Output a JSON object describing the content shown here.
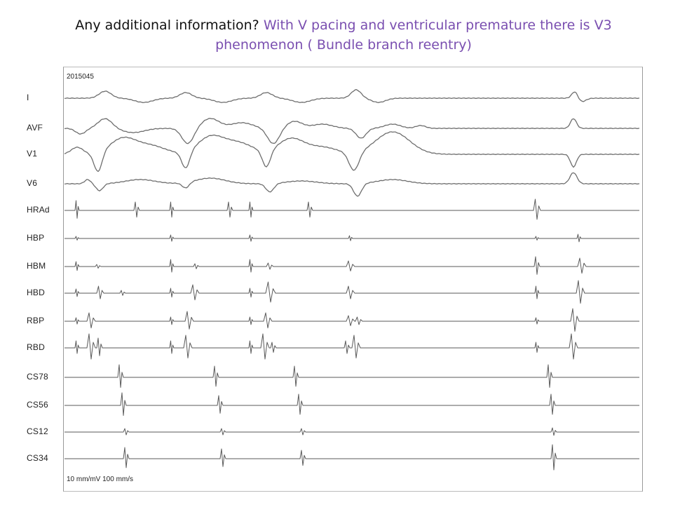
{
  "title": {
    "prefix": "Any additional information? ",
    "highlight": "With V pacing and ventricular premature there is V3 phenomenon  ( Bundle branch reentry)"
  },
  "recording": {
    "id": "2015045",
    "scale": "10 mm/mV  100 mm/s"
  },
  "channels": [
    {
      "key": "I",
      "label": "I",
      "type": "surface"
    },
    {
      "key": "AVF",
      "label": "AVF",
      "type": "surface"
    },
    {
      "key": "V1",
      "label": "V1",
      "type": "surface"
    },
    {
      "key": "V6",
      "label": "V6",
      "type": "surface"
    },
    {
      "key": "HRAd",
      "label": "HRAd",
      "type": "intracardiac"
    },
    {
      "key": "HBP",
      "label": "HBP",
      "type": "intracardiac"
    },
    {
      "key": "HBM",
      "label": "HBM",
      "type": "intracardiac"
    },
    {
      "key": "HBD",
      "label": "HBD",
      "type": "intracardiac"
    },
    {
      "key": "RBP",
      "label": "RBP",
      "type": "intracardiac"
    },
    {
      "key": "RBD",
      "label": "RBD",
      "type": "intracardiac"
    },
    {
      "key": "CS78",
      "label": "CS78",
      "type": "intracardiac"
    },
    {
      "key": "CS56",
      "label": "CS56",
      "type": "intracardiac"
    },
    {
      "key": "CS12",
      "label": "CS12",
      "type": "intracardiac"
    },
    {
      "key": "CS34",
      "label": "CS34",
      "type": "intracardiac"
    }
  ]
}
